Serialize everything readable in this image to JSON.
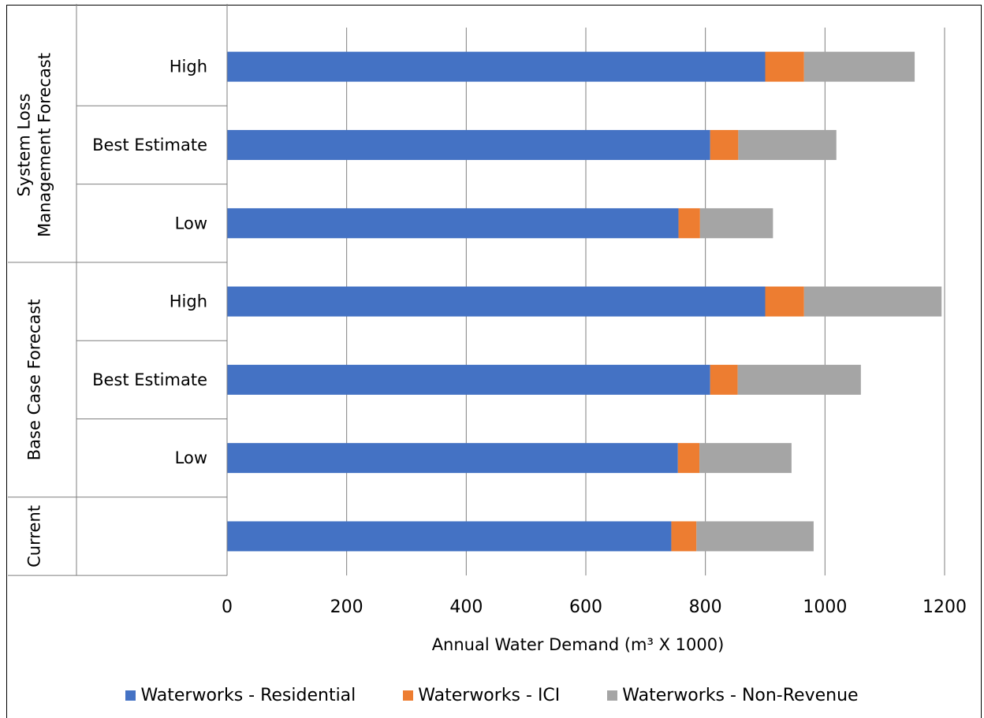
{
  "chart_data": {
    "type": "bar",
    "orientation": "horizontal",
    "stacked": true,
    "xlabel": "Annual Water Demand (m³ X 1000)",
    "xlim": [
      0,
      1200
    ],
    "xticks": [
      "0",
      "200",
      "400",
      "600",
      "800",
      "1000",
      "1200"
    ],
    "grid": true,
    "legend_position": "bottom",
    "groups": [
      {
        "name": "System Loss Management Forecast",
        "lines": [
          "System Loss",
          "Management Forecast"
        ]
      },
      {
        "name": "Base Case Forecast",
        "lines": [
          "Base Case Forecast"
        ]
      },
      {
        "name": "Current",
        "lines": [
          "Current"
        ]
      }
    ],
    "categories": [
      {
        "label": "High",
        "group": 0
      },
      {
        "label": "Best Estimate",
        "group": 0
      },
      {
        "label": "Low",
        "group": 0
      },
      {
        "label": "High",
        "group": 1
      },
      {
        "label": "Best Estimate",
        "group": 1
      },
      {
        "label": "Low",
        "group": 1
      },
      {
        "label": "",
        "group": 2
      }
    ],
    "series": [
      {
        "name": "Waterworks - Residential",
        "color": "#4472C4",
        "values": [
          900,
          808,
          755,
          900,
          808,
          754,
          743
        ]
      },
      {
        "name": "Waterworks - ICI",
        "color": "#ED7D31",
        "values": [
          65,
          47,
          36,
          65,
          46,
          36,
          42
        ]
      },
      {
        "name": "Waterworks - Non-Revenue",
        "color": "#A5A5A5",
        "values": [
          185,
          164,
          122,
          230,
          206,
          154,
          196
        ]
      }
    ]
  }
}
